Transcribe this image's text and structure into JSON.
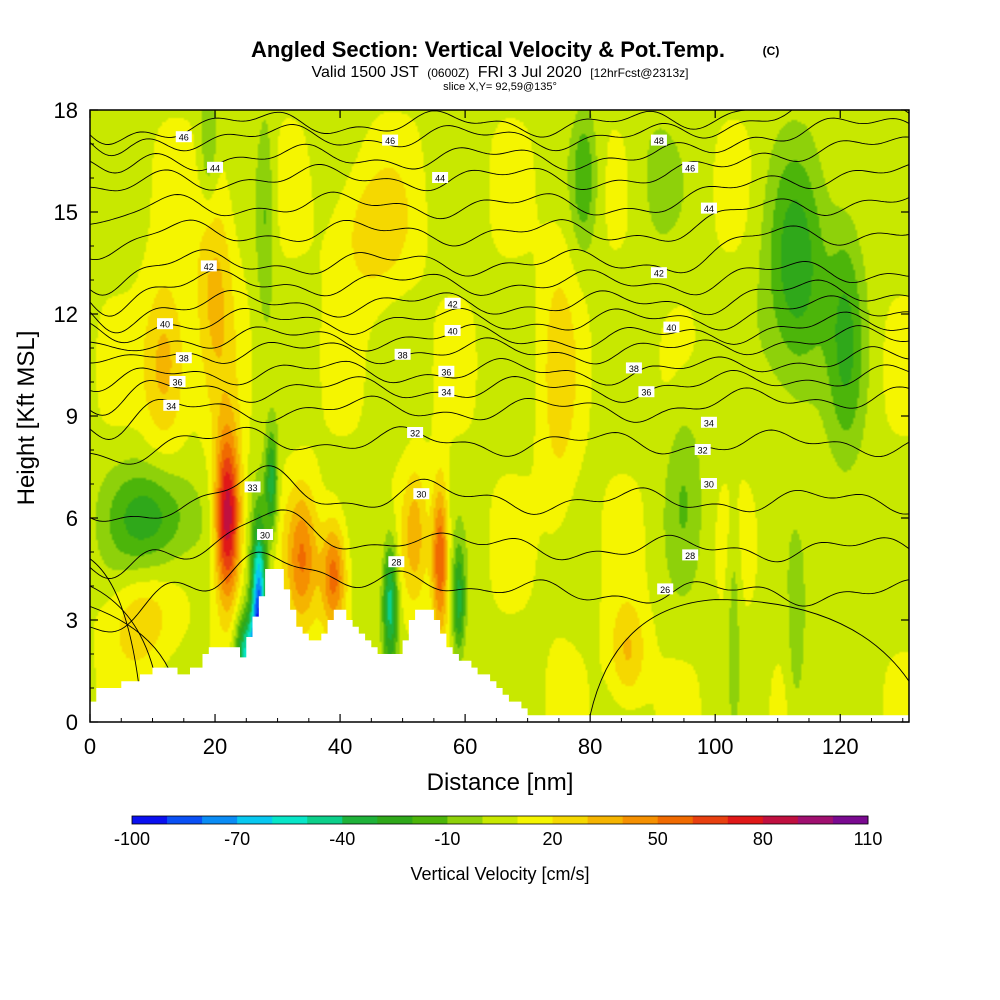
{
  "title": {
    "main": "Angled Section: Vertical Velocity & Pot.Temp.",
    "main_units": "(C)",
    "valid_prefix": "Valid 1500 JST",
    "valid_z": "(0600Z)",
    "valid_date": "FRI 3 Jul 2020",
    "valid_fcst": "[12hrFcst@2313z]",
    "slice": "slice X,Y= 92,59@135°"
  },
  "chart_data": {
    "type": "heatmap",
    "xlabel": "Distance [nm]",
    "ylabel": "Height [Kft MSL]",
    "xlim": [
      0,
      131
    ],
    "ylim": [
      0,
      18
    ],
    "x_ticks": [
      0,
      20,
      40,
      60,
      80,
      100,
      120
    ],
    "y_ticks": [
      0,
      3,
      6,
      9,
      12,
      15,
      18
    ],
    "colorbar": {
      "title": "Vertical Velocity [cm/s]",
      "levels": [
        -100,
        -90,
        -80,
        -70,
        -60,
        -50,
        -40,
        -30,
        -20,
        -10,
        0,
        10,
        20,
        30,
        40,
        50,
        60,
        70,
        80,
        90,
        100,
        110
      ],
      "tick_labels": [
        -100,
        -70,
        -40,
        -10,
        20,
        50,
        80,
        110
      ],
      "colors": [
        "#0a10f0",
        "#0a50f5",
        "#0a8cf5",
        "#08c8f0",
        "#08e6c8",
        "#0ccf8a",
        "#1fb23a",
        "#2fa81a",
        "#4cb50a",
        "#8ed10a",
        "#c8e800",
        "#f5f500",
        "#f5d800",
        "#f5b400",
        "#f59000",
        "#f06a00",
        "#e84010",
        "#e01818",
        "#c01040",
        "#a01070",
        "#7a0a90"
      ]
    },
    "terrain_profile_kft": {
      "x": [
        0,
        1,
        2,
        3,
        4,
        5,
        6,
        7,
        8,
        9,
        10,
        11,
        12,
        13,
        14,
        15,
        16,
        17,
        18,
        19,
        20,
        21,
        22,
        23,
        24,
        25,
        26,
        27,
        28,
        29,
        30,
        31,
        32,
        33,
        34,
        35,
        36,
        37,
        38,
        39,
        40,
        41,
        42,
        43,
        44,
        45,
        46,
        47,
        48,
        49,
        50,
        51,
        52,
        53,
        54,
        55,
        56,
        57,
        58,
        59,
        60,
        61,
        62,
        63,
        64,
        65,
        66,
        67,
        68,
        69,
        70,
        71,
        72,
        131
      ],
      "y": [
        0.6,
        1.0,
        1.0,
        1.0,
        1.0,
        1.2,
        1.2,
        1.2,
        1.4,
        1.4,
        1.6,
        1.6,
        1.6,
        1.6,
        1.4,
        1.4,
        1.6,
        1.6,
        2.0,
        2.2,
        2.2,
        2.2,
        2.2,
        2.2,
        1.9,
        2.5,
        3.1,
        3.7,
        4.5,
        4.5,
        4.5,
        3.9,
        3.3,
        2.8,
        2.6,
        2.4,
        2.4,
        2.6,
        3.0,
        3.3,
        3.3,
        3.0,
        2.8,
        2.6,
        2.4,
        2.2,
        2.0,
        2.0,
        2.0,
        2.0,
        2.4,
        3.0,
        3.3,
        3.3,
        3.3,
        3.0,
        2.6,
        2.2,
        2.0,
        1.8,
        1.8,
        1.6,
        1.4,
        1.4,
        1.2,
        1.0,
        0.8,
        0.6,
        0.6,
        0.4,
        0.2,
        0.2,
        0.2,
        0.2
      ]
    },
    "velocity_features": [
      {
        "x": 22,
        "z": 6.0,
        "sx": 2.0,
        "sz": 2.5,
        "w": 85
      },
      {
        "x": 20,
        "z": 13.0,
        "sx": 3.0,
        "sz": 3.5,
        "w": 25
      },
      {
        "x": 12,
        "z": 10.5,
        "sx": 3.5,
        "sz": 2.5,
        "w": 30
      },
      {
        "x": 27,
        "z": 3.0,
        "sx": 1.2,
        "sz": 2.8,
        "w": -95
      },
      {
        "x": 25,
        "z": 2.0,
        "sx": 1.8,
        "sz": 1.2,
        "w": -60
      },
      {
        "x": 29,
        "z": 7.0,
        "sx": 1.0,
        "sz": 1.5,
        "w": -45
      },
      {
        "x": 34,
        "z": 4.8,
        "sx": 2.5,
        "sz": 2.0,
        "w": 40
      },
      {
        "x": 39,
        "z": 4.3,
        "sx": 2.0,
        "sz": 1.6,
        "w": 50
      },
      {
        "x": 48,
        "z": 3.5,
        "sx": 1.2,
        "sz": 1.8,
        "w": -55
      },
      {
        "x": 52,
        "z": 5.5,
        "sx": 2.0,
        "sz": 2.0,
        "w": 25
      },
      {
        "x": 56,
        "z": 4.8,
        "sx": 1.3,
        "sz": 2.2,
        "w": 55
      },
      {
        "x": 59,
        "z": 3.5,
        "sx": 1.0,
        "sz": 1.6,
        "w": -40
      },
      {
        "x": 10,
        "z": 6.0,
        "sx": 7.0,
        "sz": 1.6,
        "w": -35
      },
      {
        "x": 8,
        "z": 3.0,
        "sx": 5.0,
        "sz": 1.5,
        "w": 20
      },
      {
        "x": 19,
        "z": 17.0,
        "sx": 1.5,
        "sz": 2.0,
        "w": -20
      },
      {
        "x": 28,
        "z": 15.0,
        "sx": 1.5,
        "sz": 3.0,
        "w": -20
      },
      {
        "x": 45,
        "z": 14.5,
        "sx": 6.0,
        "sz": 2.0,
        "w": 20
      },
      {
        "x": 79,
        "z": 16.0,
        "sx": 2.0,
        "sz": 2.0,
        "w": -25
      },
      {
        "x": 90,
        "z": 16.0,
        "sx": 4.0,
        "sz": 2.5,
        "w": -10
      },
      {
        "x": 113,
        "z": 13.0,
        "sx": 5.0,
        "sz": 3.5,
        "w": -35
      },
      {
        "x": 121,
        "z": 11.5,
        "sx": 3.0,
        "sz": 4.0,
        "w": -25
      },
      {
        "x": 75,
        "z": 10.0,
        "sx": 3.0,
        "sz": 5.0,
        "w": 15
      },
      {
        "x": 95,
        "z": 7.0,
        "sx": 3.0,
        "sz": 3.0,
        "w": -15
      },
      {
        "x": 103,
        "z": 3.5,
        "sx": 1.0,
        "sz": 2.5,
        "w": -15
      },
      {
        "x": 113,
        "z": 2.0,
        "sx": 1.5,
        "sz": 2.5,
        "w": -15
      },
      {
        "x": 120,
        "z": 3.5,
        "sx": 4.0,
        "sz": 3.0,
        "w": -5
      },
      {
        "x": 86,
        "z": 2.0,
        "sx": 3.0,
        "sz": 1.5,
        "w": 25
      }
    ],
    "pot_temp_contours": {
      "levels": [
        26,
        28,
        30,
        32,
        34,
        35,
        36,
        37,
        38,
        39,
        40,
        41,
        42,
        43,
        44,
        45,
        46,
        47,
        48
      ],
      "base_height_kft": {
        "26": 3.8,
        "28": 5.1,
        "30": 6.5,
        "32": 8.2,
        "34": 9.2,
        "35": 9.8,
        "36": 10.3,
        "37": 10.9,
        "38": 11.3,
        "39": 11.8,
        "40": 12.3,
        "41": 12.9,
        "42": 13.5,
        "43": 14.4,
        "44": 15.2,
        "45": 16.0,
        "46": 16.6,
        "47": 17.2,
        "48": 17.6
      },
      "labels": [
        {
          "x": 15,
          "y": 17.2,
          "text": "46"
        },
        {
          "x": 48,
          "y": 17.1,
          "text": "46"
        },
        {
          "x": 91,
          "y": 17.1,
          "text": "48"
        },
        {
          "x": 96,
          "y": 16.3,
          "text": "46"
        },
        {
          "x": 20,
          "y": 16.3,
          "text": "44"
        },
        {
          "x": 56,
          "y": 16.0,
          "text": "44"
        },
        {
          "x": 99,
          "y": 15.1,
          "text": "44"
        },
        {
          "x": 19,
          "y": 13.4,
          "text": "42"
        },
        {
          "x": 58,
          "y": 12.3,
          "text": "42"
        },
        {
          "x": 91,
          "y": 13.2,
          "text": "42"
        },
        {
          "x": 12,
          "y": 11.7,
          "text": "40"
        },
        {
          "x": 58,
          "y": 11.5,
          "text": "40"
        },
        {
          "x": 93,
          "y": 11.6,
          "text": "40"
        },
        {
          "x": 15,
          "y": 10.7,
          "text": "38"
        },
        {
          "x": 50,
          "y": 10.8,
          "text": "38"
        },
        {
          "x": 87,
          "y": 10.4,
          "text": "38"
        },
        {
          "x": 14,
          "y": 10.0,
          "text": "36"
        },
        {
          "x": 57,
          "y": 10.3,
          "text": "36"
        },
        {
          "x": 89,
          "y": 9.7,
          "text": "36"
        },
        {
          "x": 13,
          "y": 9.3,
          "text": "34"
        },
        {
          "x": 57,
          "y": 9.7,
          "text": "34"
        },
        {
          "x": 99,
          "y": 8.8,
          "text": "34"
        },
        {
          "x": 52,
          "y": 8.5,
          "text": "32"
        },
        {
          "x": 98,
          "y": 8.0,
          "text": "32"
        },
        {
          "x": 26,
          "y": 6.9,
          "text": "33"
        },
        {
          "x": 53,
          "y": 6.7,
          "text": "30"
        },
        {
          "x": 99,
          "y": 7.0,
          "text": "30"
        },
        {
          "x": 28,
          "y": 5.5,
          "text": "30"
        },
        {
          "x": 49,
          "y": 4.7,
          "text": "28"
        },
        {
          "x": 96,
          "y": 4.9,
          "text": "28"
        },
        {
          "x": 92,
          "y": 3.9,
          "text": "26"
        }
      ]
    }
  }
}
